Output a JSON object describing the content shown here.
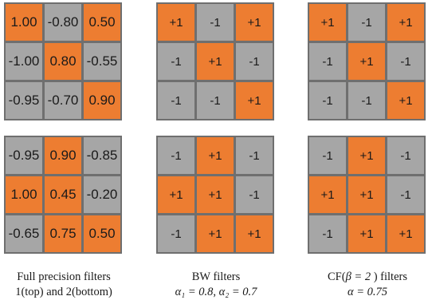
{
  "colors": {
    "orange": "#ed7d31",
    "gray": "#a6a6a6",
    "border": "#6f6f6f"
  },
  "grids": [
    {
      "name": "full-precision-filter-1",
      "style": "full",
      "cells": [
        {
          "v": "1.00",
          "c": "orange"
        },
        {
          "v": "-0.80",
          "c": "gray"
        },
        {
          "v": "0.50",
          "c": "orange"
        },
        {
          "v": "-1.00",
          "c": "gray"
        },
        {
          "v": "0.80",
          "c": "orange"
        },
        {
          "v": "-0.55",
          "c": "gray"
        },
        {
          "v": "-0.95",
          "c": "gray"
        },
        {
          "v": "-0.70",
          "c": "gray"
        },
        {
          "v": "0.90",
          "c": "orange"
        }
      ]
    },
    {
      "name": "bw-filter-1",
      "style": "bin",
      "cells": [
        {
          "v": "+1",
          "c": "orange"
        },
        {
          "v": "-1",
          "c": "gray"
        },
        {
          "v": "+1",
          "c": "orange"
        },
        {
          "v": "-1",
          "c": "gray"
        },
        {
          "v": "+1",
          "c": "orange"
        },
        {
          "v": "-1",
          "c": "gray"
        },
        {
          "v": "-1",
          "c": "gray"
        },
        {
          "v": "-1",
          "c": "gray"
        },
        {
          "v": "+1",
          "c": "orange"
        }
      ]
    },
    {
      "name": "cf-filter-1",
      "style": "bin",
      "cells": [
        {
          "v": "+1",
          "c": "orange"
        },
        {
          "v": "-1",
          "c": "gray"
        },
        {
          "v": "+1",
          "c": "orange"
        },
        {
          "v": "-1",
          "c": "gray"
        },
        {
          "v": "+1",
          "c": "orange"
        },
        {
          "v": "-1",
          "c": "gray"
        },
        {
          "v": "-1",
          "c": "gray"
        },
        {
          "v": "-1",
          "c": "gray"
        },
        {
          "v": "+1",
          "c": "orange"
        }
      ]
    },
    {
      "name": "full-precision-filter-2",
      "style": "full",
      "cells": [
        {
          "v": "-0.95",
          "c": "gray"
        },
        {
          "v": "0.90",
          "c": "orange"
        },
        {
          "v": "-0.85",
          "c": "gray"
        },
        {
          "v": "1.00",
          "c": "orange"
        },
        {
          "v": "0.45",
          "c": "orange"
        },
        {
          "v": "-0.20",
          "c": "gray"
        },
        {
          "v": "-0.65",
          "c": "gray"
        },
        {
          "v": "0.75",
          "c": "orange"
        },
        {
          "v": "0.50",
          "c": "orange"
        }
      ]
    },
    {
      "name": "bw-filter-2",
      "style": "bin",
      "cells": [
        {
          "v": "-1",
          "c": "gray"
        },
        {
          "v": "+1",
          "c": "orange"
        },
        {
          "v": "-1",
          "c": "gray"
        },
        {
          "v": "+1",
          "c": "orange"
        },
        {
          "v": "+1",
          "c": "orange"
        },
        {
          "v": "-1",
          "c": "gray"
        },
        {
          "v": "-1",
          "c": "gray"
        },
        {
          "v": "+1",
          "c": "orange"
        },
        {
          "v": "+1",
          "c": "orange"
        }
      ]
    },
    {
      "name": "cf-filter-2",
      "style": "bin",
      "cells": [
        {
          "v": "-1",
          "c": "gray"
        },
        {
          "v": "+1",
          "c": "orange"
        },
        {
          "v": "-1",
          "c": "gray"
        },
        {
          "v": "+1",
          "c": "orange"
        },
        {
          "v": "+1",
          "c": "orange"
        },
        {
          "v": "-1",
          "c": "gray"
        },
        {
          "v": "-1",
          "c": "gray"
        },
        {
          "v": "+1",
          "c": "orange"
        },
        {
          "v": "+1",
          "c": "orange"
        }
      ]
    }
  ],
  "captions": {
    "full": {
      "line1": "Full precision filters",
      "line2": "1(top) and 2(bottom)"
    },
    "bw": {
      "line1": "BW filters",
      "line2_alpha1": "α₁ = 0.8",
      "line2_sep": ", ",
      "line2_alpha2": "α₂ = 0.7"
    },
    "cf": {
      "line1_pre": "CF(",
      "line1_beta": "β = 2",
      "line1_post": " ) filters",
      "line2": "α = 0.75"
    }
  }
}
